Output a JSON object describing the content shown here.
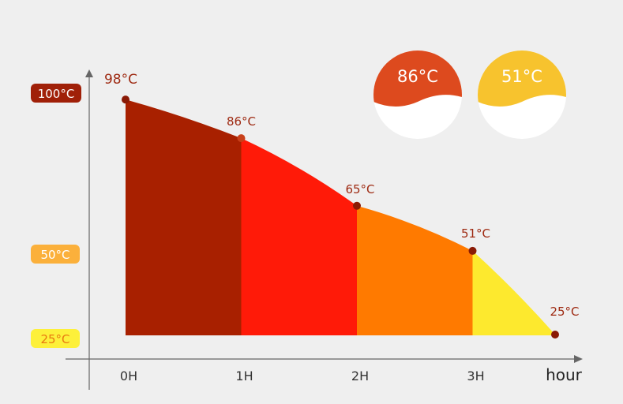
{
  "chart_data": {
    "type": "area",
    "xlabel": "hour",
    "ylabel": "",
    "categories": [
      "0H",
      "1H",
      "2H",
      "3H"
    ],
    "x": [
      0,
      1,
      2,
      3,
      4
    ],
    "y": [
      98,
      86,
      65,
      51,
      25
    ],
    "point_labels": [
      "98°C",
      "86°C",
      "65°C",
      "51°C",
      "25°C"
    ],
    "segment_colors": [
      "#a82000",
      "#ff1a08",
      "#ff7a00",
      "#fde92e"
    ],
    "y_ticks": [
      {
        "value": 100,
        "label": "100°C",
        "color": "#a02008",
        "text_color": "#ffffff"
      },
      {
        "value": 50,
        "label": "50°C",
        "color": "#fbb03b",
        "text_color": "#ffffff"
      },
      {
        "value": 25,
        "label": "25°C",
        "color": "#fdf03a",
        "text_color": "#e87a10"
      }
    ],
    "grid": false
  },
  "badges": [
    {
      "label": "86°C",
      "value": 86,
      "fill_color": "#dd4a1e"
    },
    {
      "label": "51°C",
      "value": 51,
      "fill_color": "#f7c32e"
    }
  ],
  "colors": {
    "background": "#efefef",
    "axis": "#666666",
    "label": "#9e2a12",
    "point": "#8a1a05"
  }
}
